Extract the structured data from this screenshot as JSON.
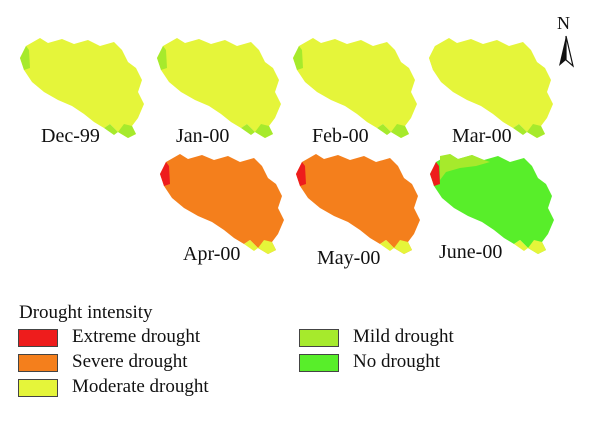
{
  "map": {
    "north_label": "N",
    "panels": [
      {
        "label": "Dec-99",
        "fills": {
          "base": "moderate",
          "west_tip": "mild",
          "south_tip": "mild",
          "west_strip": null
        }
      },
      {
        "label": "Jan-00",
        "fills": {
          "base": "moderate",
          "west_tip": "mild",
          "south_tip": "mild",
          "west_strip": null
        }
      },
      {
        "label": "Feb-00",
        "fills": {
          "base": "moderate",
          "west_tip": "mild",
          "south_tip": "mild",
          "west_strip": null
        }
      },
      {
        "label": "Mar-00",
        "fills": {
          "base": "moderate",
          "west_tip": "moderate",
          "south_tip": "mild",
          "west_strip": null
        }
      },
      {
        "label": "Apr-00",
        "fills": {
          "base": "severe",
          "west_tip": "extreme",
          "south_tip": "moderate",
          "west_strip": null
        }
      },
      {
        "label": "May-00",
        "fills": {
          "base": "severe",
          "west_tip": "extreme",
          "south_tip": "moderate",
          "west_strip": null
        }
      },
      {
        "label": "June-00",
        "fills": {
          "base": "none",
          "west_tip": "extreme",
          "south_tip": "moderate",
          "west_strip": "mild"
        }
      }
    ]
  },
  "legend": {
    "title": "Drought intensity",
    "items": [
      {
        "key": "extreme",
        "label": "Extreme drought",
        "color": "#ee1c1c"
      },
      {
        "key": "severe",
        "label": "Severe drought",
        "color": "#f47f1c"
      },
      {
        "key": "moderate",
        "label": "Moderate drought",
        "color": "#e5f53a"
      },
      {
        "key": "mild",
        "label": "Mild drought",
        "color": "#a6ea2c"
      },
      {
        "key": "none",
        "label": "No drought",
        "color": "#58ee2a"
      }
    ]
  }
}
